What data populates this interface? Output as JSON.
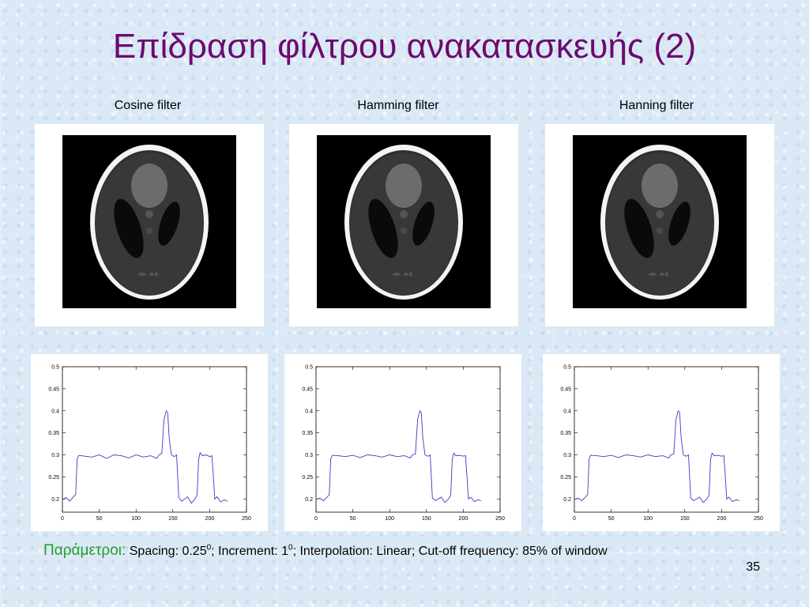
{
  "slide": {
    "title": "Επίδραση φίλτρου ανακατασκευής (2)",
    "number": "35"
  },
  "columns": [
    {
      "label": "Cosine filter"
    },
    {
      "label": "Hamming filter"
    },
    {
      "label": "Hanning filter"
    }
  ],
  "parameters": {
    "label": "Παράμετροι:",
    "spacing_text": "Spacing: 0.25",
    "spacing_unit": "0",
    "increment_text": "; Increment: 1",
    "increment_unit": "0",
    "rest_text": "; Interpolation: Linear; Cut-off frequency: 85% of window"
  },
  "chart_data": [
    {
      "type": "line",
      "xlim": [
        0,
        250
      ],
      "ylim": [
        0.17,
        0.5
      ],
      "xticks": [
        0,
        50,
        100,
        150,
        200,
        250
      ],
      "yticks": [
        0.2,
        0.25,
        0.3,
        0.35,
        0.4,
        0.45,
        0.5
      ],
      "series": [
        {
          "color": "#3a3ac8",
          "x": [
            0,
            5,
            10,
            15,
            18,
            20,
            22,
            30,
            40,
            50,
            60,
            70,
            80,
            90,
            100,
            110,
            120,
            128,
            131,
            135,
            138,
            141,
            143,
            145,
            148,
            150,
            152,
            155,
            158,
            162,
            166,
            170,
            175,
            180,
            183,
            185,
            187,
            190,
            195,
            200,
            203,
            205,
            207,
            210,
            215,
            220,
            224
          ],
          "y": [
            0.198,
            0.203,
            0.195,
            0.205,
            0.21,
            0.29,
            0.299,
            0.297,
            0.295,
            0.3,
            0.292,
            0.3,
            0.298,
            0.293,
            0.3,
            0.295,
            0.298,
            0.292,
            0.3,
            0.303,
            0.38,
            0.4,
            0.395,
            0.34,
            0.3,
            0.298,
            0.296,
            0.3,
            0.203,
            0.195,
            0.2,
            0.205,
            0.19,
            0.2,
            0.21,
            0.29,
            0.305,
            0.298,
            0.3,
            0.296,
            0.298,
            0.25,
            0.2,
            0.205,
            0.193,
            0.198,
            0.195
          ]
        }
      ]
    },
    {
      "type": "line",
      "xlim": [
        0,
        250
      ],
      "ylim": [
        0.17,
        0.5
      ],
      "xticks": [
        0,
        50,
        100,
        150,
        200,
        250
      ],
      "yticks": [
        0.2,
        0.25,
        0.3,
        0.35,
        0.4,
        0.45,
        0.5
      ],
      "series": [
        {
          "color": "#3a3ac8",
          "x": [
            0,
            5,
            10,
            15,
            18,
            20,
            22,
            30,
            40,
            50,
            60,
            70,
            80,
            90,
            100,
            110,
            120,
            128,
            131,
            135,
            138,
            141,
            143,
            145,
            148,
            150,
            152,
            155,
            158,
            162,
            166,
            170,
            175,
            180,
            183,
            185,
            187,
            190,
            195,
            200,
            203,
            205,
            207,
            210,
            215,
            220,
            224
          ],
          "y": [
            0.199,
            0.202,
            0.196,
            0.204,
            0.21,
            0.29,
            0.299,
            0.298,
            0.296,
            0.299,
            0.294,
            0.3,
            0.298,
            0.295,
            0.3,
            0.296,
            0.298,
            0.293,
            0.3,
            0.302,
            0.38,
            0.4,
            0.396,
            0.34,
            0.3,
            0.298,
            0.297,
            0.3,
            0.202,
            0.196,
            0.2,
            0.204,
            0.192,
            0.2,
            0.209,
            0.29,
            0.304,
            0.298,
            0.299,
            0.297,
            0.298,
            0.25,
            0.2,
            0.204,
            0.194,
            0.198,
            0.196
          ]
        }
      ]
    },
    {
      "type": "line",
      "xlim": [
        0,
        250
      ],
      "ylim": [
        0.17,
        0.5
      ],
      "xticks": [
        0,
        50,
        100,
        150,
        200,
        250
      ],
      "yticks": [
        0.2,
        0.25,
        0.3,
        0.35,
        0.4,
        0.45,
        0.5
      ],
      "series": [
        {
          "color": "#3a3ac8",
          "x": [
            0,
            5,
            10,
            15,
            18,
            20,
            22,
            30,
            40,
            50,
            60,
            70,
            80,
            90,
            100,
            110,
            120,
            128,
            131,
            135,
            138,
            141,
            143,
            145,
            148,
            150,
            152,
            155,
            158,
            162,
            166,
            170,
            175,
            180,
            183,
            185,
            187,
            190,
            195,
            200,
            203,
            205,
            207,
            210,
            215,
            220,
            224
          ],
          "y": [
            0.199,
            0.202,
            0.196,
            0.204,
            0.21,
            0.29,
            0.299,
            0.298,
            0.296,
            0.299,
            0.294,
            0.3,
            0.298,
            0.295,
            0.3,
            0.296,
            0.298,
            0.293,
            0.3,
            0.302,
            0.38,
            0.4,
            0.396,
            0.34,
            0.3,
            0.298,
            0.297,
            0.3,
            0.202,
            0.196,
            0.2,
            0.204,
            0.192,
            0.2,
            0.209,
            0.29,
            0.304,
            0.298,
            0.299,
            0.297,
            0.298,
            0.25,
            0.2,
            0.204,
            0.194,
            0.198,
            0.196
          ]
        }
      ]
    }
  ]
}
